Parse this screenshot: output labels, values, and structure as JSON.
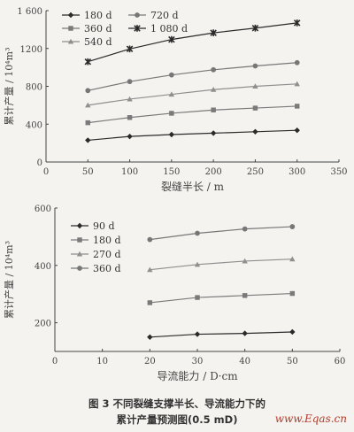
{
  "chart_data": [
    {
      "type": "line",
      "x": [
        50,
        100,
        150,
        200,
        250,
        300
      ],
      "xlabel": "裂缝半长 / m",
      "ylabel": "累计产量 / 10⁴m³",
      "xlim": [
        0,
        350
      ],
      "ylim": [
        0,
        1600
      ],
      "xticks": [
        "0",
        "50",
        "100",
        "150",
        "200",
        "250",
        "300",
        "350"
      ],
      "yticks": [
        "0",
        "400",
        "800",
        "1200",
        "1 600"
      ],
      "legend_position": "top-left, two columns",
      "series": [
        {
          "name": "180 d",
          "marker": "diamond",
          "values": [
            230,
            270,
            290,
            305,
            320,
            335
          ]
        },
        {
          "name": "360 d",
          "marker": "square",
          "values": [
            415,
            470,
            515,
            550,
            570,
            590
          ]
        },
        {
          "name": "540 d",
          "marker": "triangle",
          "values": [
            600,
            665,
            715,
            765,
            800,
            825
          ]
        },
        {
          "name": "720 d",
          "marker": "circle",
          "values": [
            755,
            850,
            920,
            975,
            1015,
            1050
          ]
        },
        {
          "name": "1 080 d",
          "marker": "star",
          "values": [
            1060,
            1195,
            1295,
            1365,
            1415,
            1470
          ]
        }
      ]
    },
    {
      "type": "line",
      "x": [
        20,
        30,
        40,
        50
      ],
      "xlabel": "导流能力 / D·cm",
      "ylabel": "累计产量 / 10⁴m³",
      "xlim": [
        0,
        60
      ],
      "ylim": [
        100,
        600
      ],
      "xticks": [
        "0",
        "10",
        "20",
        "30",
        "40",
        "50",
        "60"
      ],
      "yticks": [
        "200",
        "400",
        "600"
      ],
      "legend_position": "top-left",
      "series": [
        {
          "name": "90 d",
          "marker": "diamond",
          "values": [
            150,
            160,
            163,
            168
          ]
        },
        {
          "name": "180 d",
          "marker": "square",
          "values": [
            270,
            288,
            295,
            302
          ]
        },
        {
          "name": "270 d",
          "marker": "triangle",
          "values": [
            385,
            403,
            415,
            422
          ]
        },
        {
          "name": "360 d",
          "marker": "circle",
          "values": [
            490,
            512,
            527,
            535
          ]
        }
      ]
    }
  ],
  "caption": {
    "line1": "图 3    不同裂缝支撑半长、导流能力下的",
    "line2": "累计产量预测图(0.5 mD)"
  },
  "watermark": "www.Eqas.cn"
}
